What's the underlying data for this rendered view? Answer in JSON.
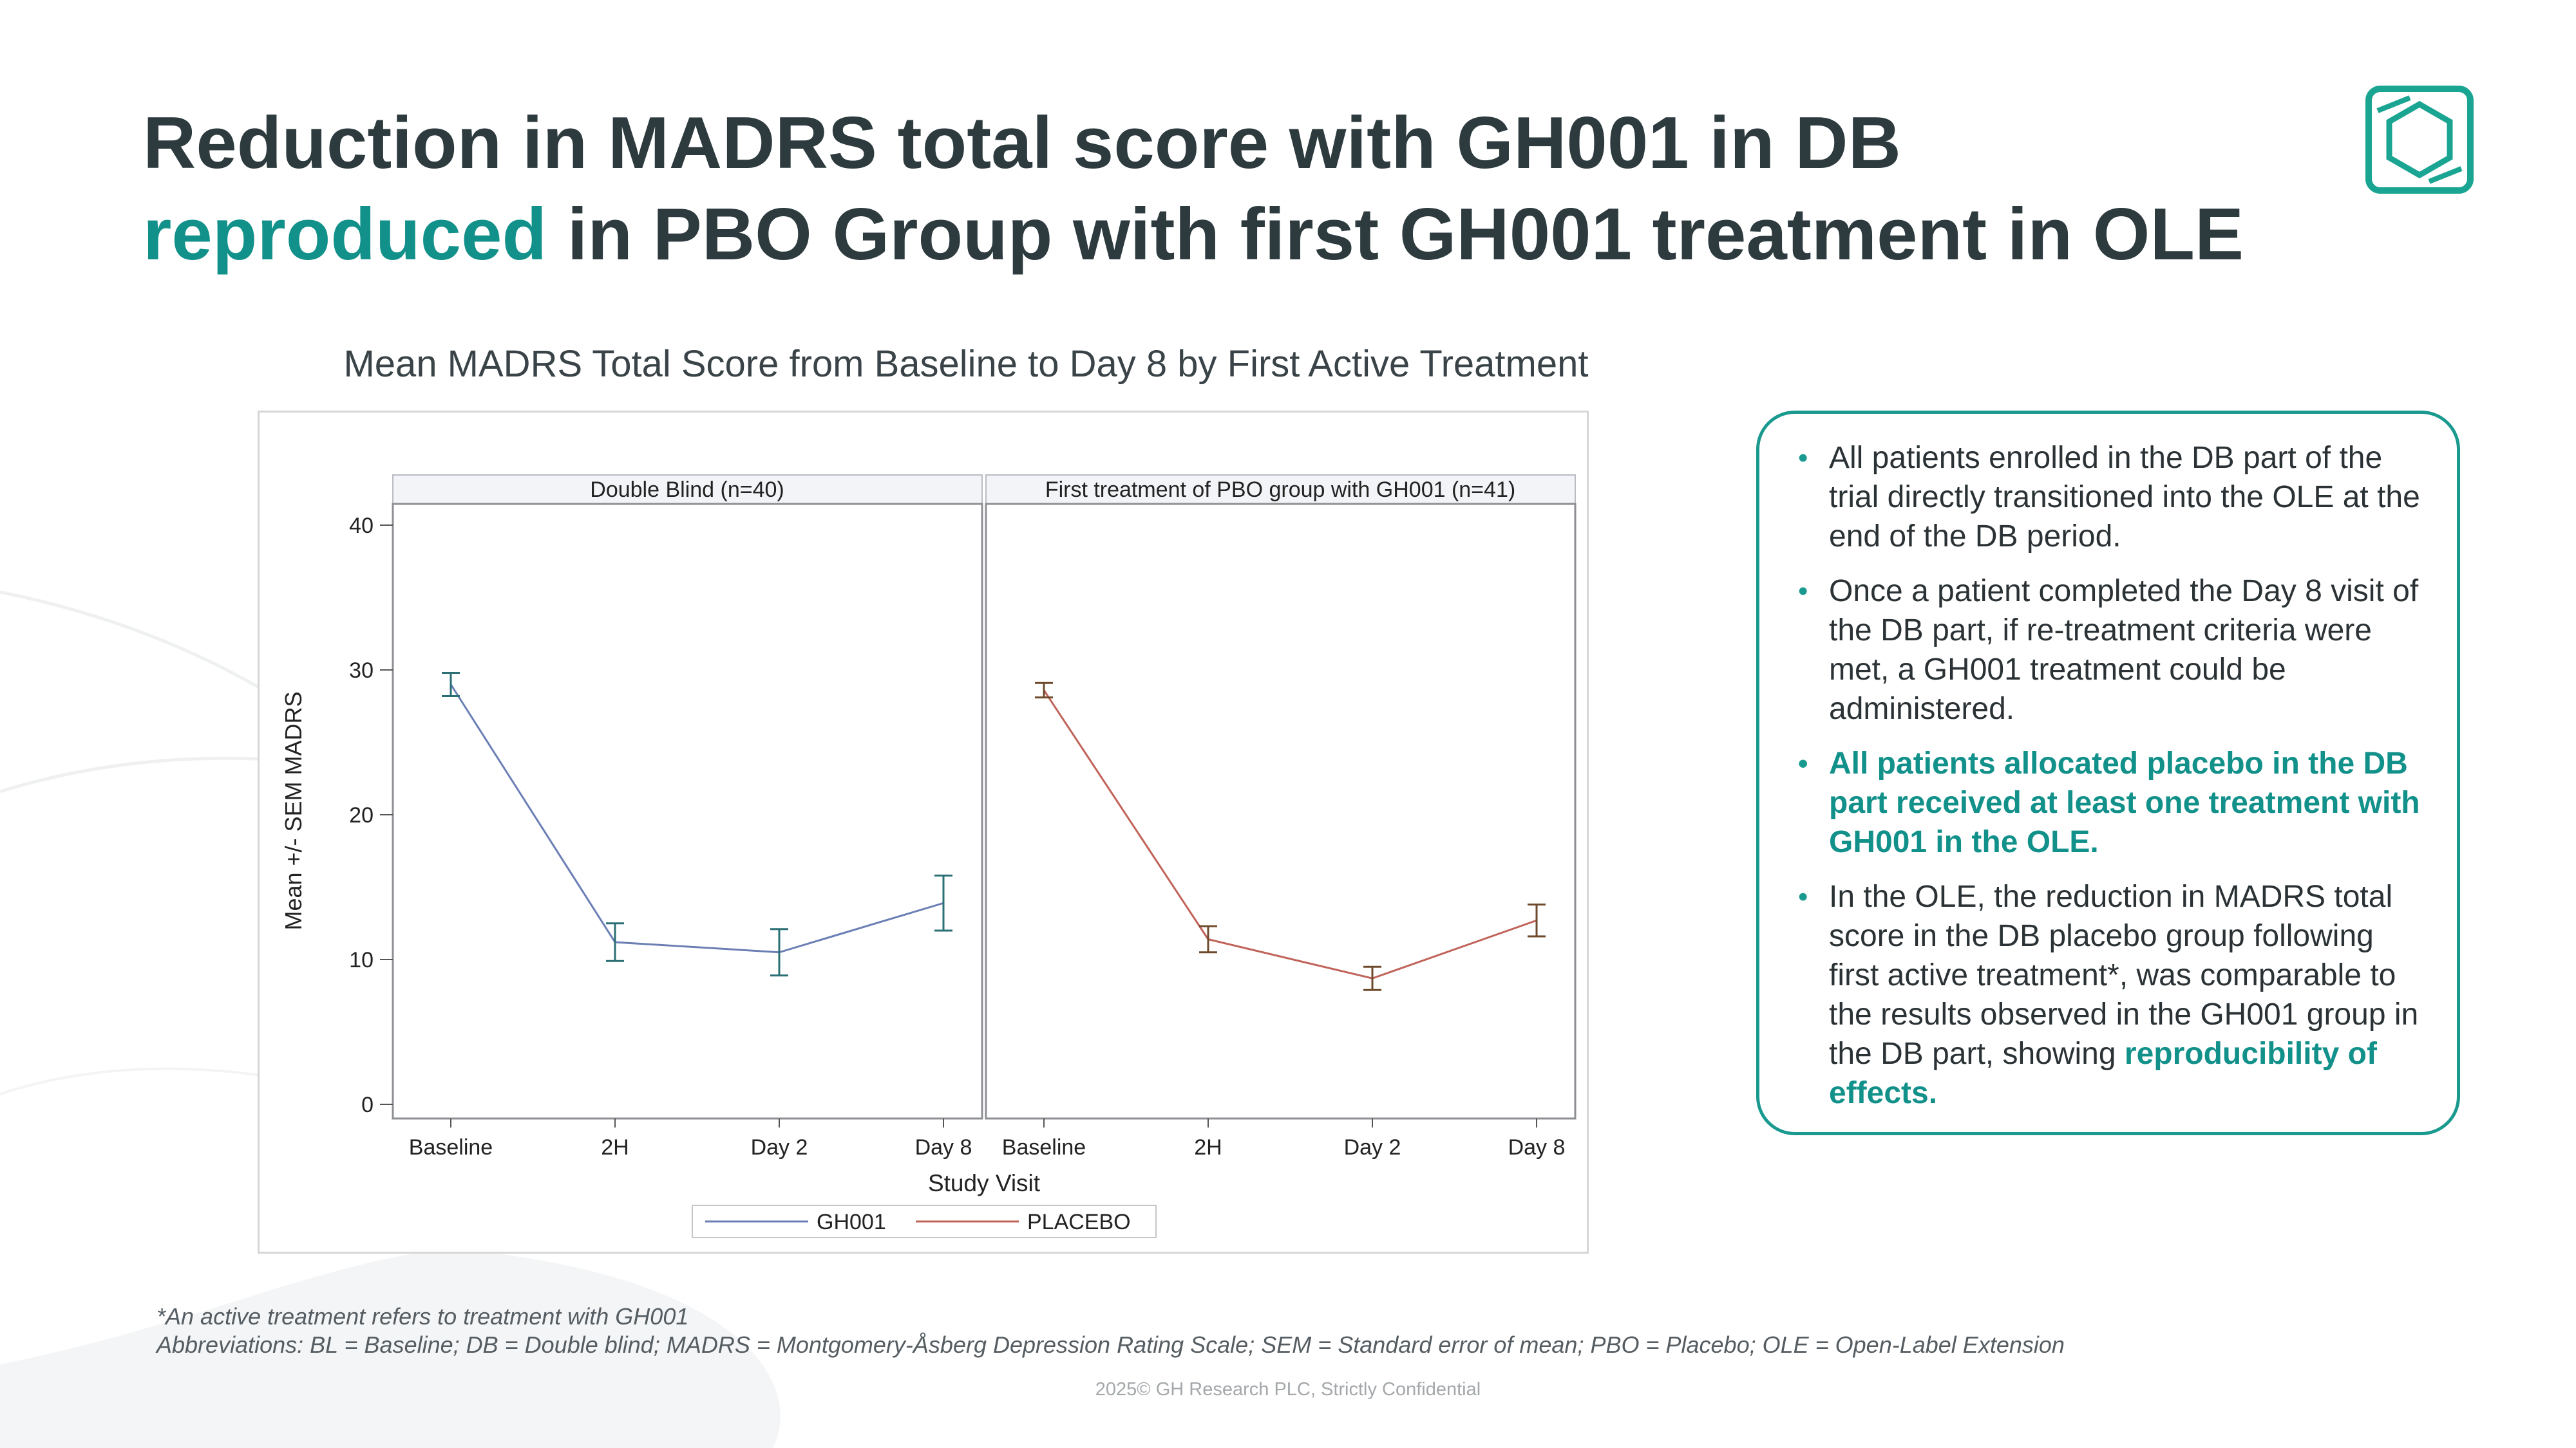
{
  "slide": {
    "title_line1": "Reduction in MADRS total score with GH001 in DB",
    "title_line2_accent": "reproduced",
    "title_line2_rest": " in PBO Group with first GH001 treatment in OLE",
    "accent_color": "#12908a"
  },
  "chart_title": "Mean MADRS Total Score from Baseline to Day 8 by First Active Treatment",
  "chart_data": {
    "type": "line",
    "xlabel": "Study Visit",
    "ylabel": "Mean +/- SEM MADRS",
    "ylim": [
      0,
      42
    ],
    "yticks": [
      0,
      10,
      20,
      30,
      40
    ],
    "categories": [
      "Baseline",
      "2H",
      "Day 2",
      "Day 8"
    ],
    "legend_position": "bottom",
    "panels": [
      {
        "label": "Double Blind (n=40)",
        "series": "GH001",
        "color": "#6b7fb5",
        "errcolor": "#2a6f73",
        "values": [
          29.0,
          11.2,
          10.5,
          13.9
        ],
        "sem": [
          0.8,
          1.3,
          1.6,
          1.9
        ]
      },
      {
        "label": "First treatment of PBO group with GH001 (n=41)",
        "series": "PLACEBO",
        "color": "#c0645a",
        "errcolor": "#6e4a2c",
        "values": [
          28.6,
          11.4,
          8.7,
          12.7
        ],
        "sem": [
          0.5,
          0.9,
          0.8,
          1.1
        ]
      }
    ],
    "legend": [
      {
        "name": "GH001",
        "color": "#6b7fb5"
      },
      {
        "name": "PLACEBO",
        "color": "#c0645a"
      }
    ]
  },
  "info_box": {
    "bullets": [
      {
        "text": "All patients enrolled in the DB part of the trial directly transitioned into the OLE at the end of the DB period."
      },
      {
        "text": "Once a patient completed the Day 8 visit of the DB part, if re-treatment criteria were met, a GH001 treatment could be administered."
      },
      {
        "text": "All patients allocated placebo in the DB part received at least one treatment with GH001 in the OLE."
      },
      {
        "text": "In the OLE, the reduction in MADRS total score in the DB placebo group following first active treatment*, was comparable to the results observed in the GH001 group in the DB part, showing ",
        "emph": "reproducibility of effects."
      }
    ],
    "bullet_glyph": "•",
    "border_color": "#1a9a8f"
  },
  "footnotes": {
    "note1": "*An active treatment refers to treatment with GH001",
    "note2": "Abbreviations: BL = Baseline; DB = Double blind; MADRS = Montgomery-Åsberg Depression Rating Scale; SEM = Standard error of mean; PBO = Placebo; OLE = Open-Label Extension"
  },
  "copyright": "2025© GH Research PLC, Strictly Confidential"
}
